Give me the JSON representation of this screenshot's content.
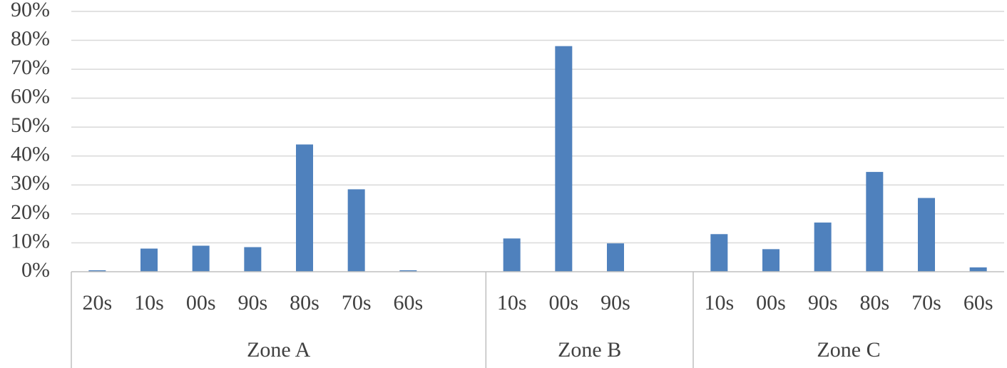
{
  "chart_data": {
    "type": "bar",
    "color": "#4f81bd",
    "grid": true,
    "ylim": [
      0,
      90
    ],
    "yticks": [
      {
        "value": 0,
        "label": "0%"
      },
      {
        "value": 10,
        "label": "10%"
      },
      {
        "value": 20,
        "label": "20%"
      },
      {
        "value": 30,
        "label": "30%"
      },
      {
        "value": 40,
        "label": "40%"
      },
      {
        "value": 50,
        "label": "50%"
      },
      {
        "value": 60,
        "label": "60%"
      },
      {
        "value": 70,
        "label": "70%"
      },
      {
        "value": 80,
        "label": "80%"
      },
      {
        "value": 90,
        "label": "90%"
      }
    ],
    "groups": [
      {
        "name": "Zone A",
        "categories": [
          "20s",
          "10s",
          "00s",
          "90s",
          "80s",
          "70s",
          "60s",
          null
        ],
        "values": [
          0.5,
          8,
          9,
          8.5,
          44,
          28.5,
          0.5,
          null
        ]
      },
      {
        "name": "Zone B",
        "categories": [
          "10s",
          "00s",
          "90s",
          null
        ],
        "values": [
          11.5,
          78,
          9.8,
          null
        ]
      },
      {
        "name": "Zone C",
        "categories": [
          "10s",
          "00s",
          "90s",
          "80s",
          "70s",
          "60s"
        ],
        "values": [
          13,
          7.8,
          17,
          34.5,
          25.5,
          1.5
        ]
      }
    ]
  }
}
